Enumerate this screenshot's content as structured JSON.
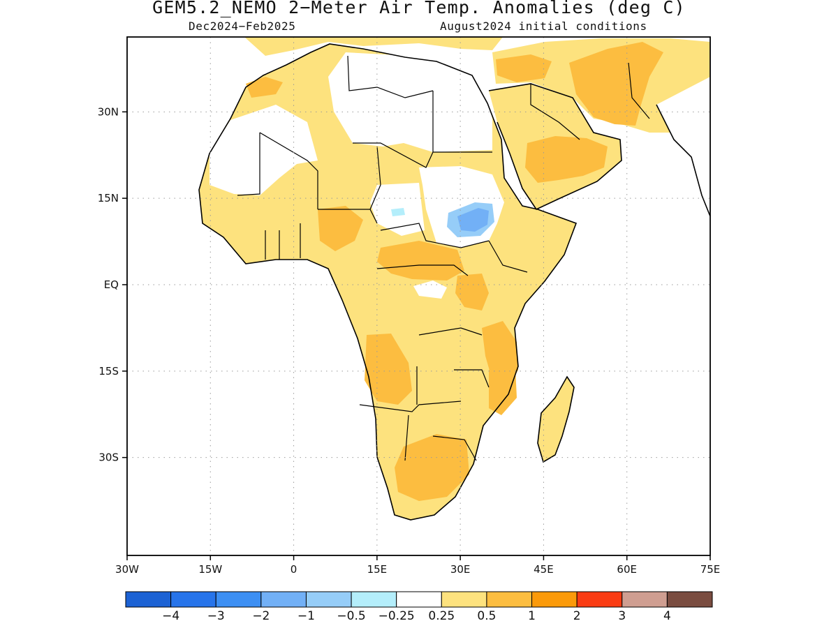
{
  "title": "GEM5.2_NEMO 2−Meter Air Temp. Anomalies (deg C)",
  "subtitle_left": "Dec2024−Feb2025",
  "subtitle_right": "August2024 initial conditions",
  "map": {
    "lon_range": [
      -30,
      75
    ],
    "lat_range": [
      -47,
      43
    ],
    "x_ticks": [
      "30W",
      "15W",
      "0",
      "15E",
      "30E",
      "45E",
      "60E",
      "75E"
    ],
    "y_ticks": [
      "30N",
      "15N",
      "EQ",
      "15S",
      "30S"
    ]
  },
  "colorbar": {
    "colors": [
      "#1c62d4",
      "#2774ea",
      "#3d8ff3",
      "#72b0f6",
      "#96cdf8",
      "#b4eefb",
      "#ffffff",
      "#fde27e",
      "#fcbd40",
      "#fb9a0a",
      "#fa3c13",
      "#cf9e91",
      "#7a4c40"
    ],
    "labels": [
      "−4",
      "−3",
      "−2",
      "−1",
      "−0.5",
      "−0.25",
      "0.25",
      "0.5",
      "1",
      "2",
      "3",
      "4"
    ]
  }
}
